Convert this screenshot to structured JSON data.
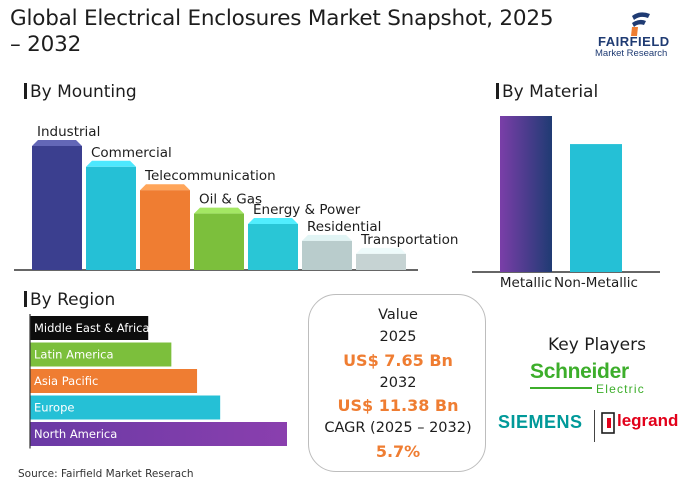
{
  "title": "Global Electrical Enclosures Market Snapshot, 2025 – 2032",
  "brand": {
    "name": "FAIRFIELD",
    "sub": "Market Research"
  },
  "colors": {
    "orange": "#ef7d32",
    "navy": "#1f3b73",
    "teal": "#25c0d6",
    "green": "#7cbf3c",
    "purple": "#8a3fae"
  },
  "source": "Source: Fairfield Market Reserach",
  "value_box": {
    "heading": "Value",
    "year1": "2025",
    "value1": "US$ 7.65 Bn",
    "year2": "2032",
    "value2": "US$ 11.38 Bn",
    "cagr_label": "CAGR (2025 – 2032)",
    "cagr_value": "5.7%"
  },
  "key_players": {
    "heading": "Key Players",
    "logos": [
      "Schneider",
      "Electric",
      "SIEMENS",
      "legrand"
    ]
  },
  "chart_data": [
    {
      "type": "bar",
      "title": "By Mounting",
      "categories": [
        "Industrial",
        "Commercial",
        "Telecommunication",
        "Oil & Gas",
        "Energy & Power",
        "Residential",
        "Transportation"
      ],
      "values": [
        100,
        84,
        66,
        48,
        40,
        27,
        17
      ],
      "ylim": [
        0,
        100
      ],
      "colors": [
        "#3b3f8f",
        "#25c0d6",
        "#ef7d32",
        "#7cbf3c",
        "#29c6d6",
        "#b9cccc",
        "#c6d3d3"
      ],
      "grid": false
    },
    {
      "type": "bar",
      "title": "By Material",
      "categories": [
        "Metallic",
        "Non-Metallic"
      ],
      "values": [
        100,
        82
      ],
      "ylim": [
        0,
        100
      ],
      "colors": [
        "#7a3ea8",
        "#25c0d6"
      ],
      "grid": false
    },
    {
      "type": "bar",
      "orientation": "horizontal",
      "title": "By Region",
      "categories": [
        "Middle East & Africa",
        "Latin America",
        "Asia Pacific",
        "Europe",
        "North America"
      ],
      "values": [
        46,
        55,
        65,
        74,
        100
      ],
      "xlim": [
        0,
        100
      ],
      "colors": [
        "#0d0d0d",
        "#7cbf3c",
        "#ef7d32",
        "#25c0d6",
        "#6a3aa5"
      ],
      "grid": false
    }
  ]
}
